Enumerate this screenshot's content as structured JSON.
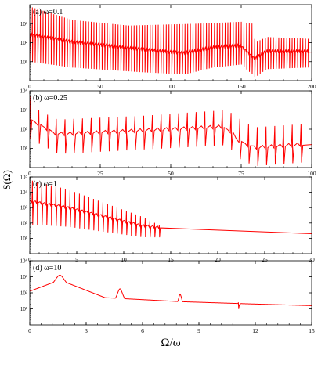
{
  "figure": {
    "ylabel": "S(Ω)",
    "xlabel": "Ω/ω",
    "line_color": "#ff0000"
  },
  "chart_data": [
    {
      "type": "line",
      "label": "(a) ω=0.1",
      "xlim": [
        0,
        200
      ],
      "ylim_log10": [
        0,
        4
      ],
      "y_scale": "log",
      "x_ticks": [
        0,
        50,
        100,
        150,
        200
      ],
      "y_ticks": [
        "10¹",
        "10²",
        "10³"
      ],
      "series": [
        {
          "peaks": {
            "x0": 0,
            "dx": 1.9,
            "count": 105
          },
          "baseline": [
            [
              0,
              2.4
            ],
            [
              30,
              2.0
            ],
            [
              80,
              1.6
            ],
            [
              110,
              1.4
            ],
            [
              130,
              1.7
            ],
            [
              150,
              1.8
            ],
            [
              160,
              1.1
            ],
            [
              168,
              1.5
            ],
            [
              200,
              1.5
            ]
          ],
          "peak_height": [
            [
              0,
              3.9
            ],
            [
              30,
              3.2
            ],
            [
              70,
              2.9
            ],
            [
              120,
              3.0
            ],
            [
              150,
              3.1
            ],
            [
              158,
              3.0
            ],
            [
              160,
              2.0
            ],
            [
              168,
              2.3
            ],
            [
              200,
              2.2
            ]
          ],
          "dip_depth": [
            [
              0,
              1.4
            ],
            [
              200,
              0.8
            ]
          ]
        }
      ]
    },
    {
      "type": "line",
      "label": "(b) ω=0.25",
      "xlim": [
        0,
        100
      ],
      "ylim_log10": [
        0,
        4
      ],
      "y_scale": "log",
      "x_ticks": [
        0,
        25,
        50,
        75,
        100
      ],
      "y_ticks": [
        "10¹",
        "10²",
        "10³",
        "10⁴"
      ],
      "series": [
        {
          "peaks": {
            "x0": 0.2,
            "dx": 3.1,
            "count": 32
          },
          "baseline": [
            [
              0,
              2.5
            ],
            [
              10,
              1.7
            ],
            [
              40,
              1.9
            ],
            [
              70,
              2.1
            ],
            [
              75,
              1.3
            ],
            [
              80,
              1.0
            ],
            [
              100,
              1.2
            ]
          ],
          "peak_height": [
            [
              0,
              3.8
            ],
            [
              3,
              3.0
            ],
            [
              10,
              2.5
            ],
            [
              40,
              2.7
            ],
            [
              70,
              3.0
            ],
            [
              75,
              2.5
            ],
            [
              80,
              2.1
            ],
            [
              100,
              2.3
            ]
          ],
          "dip_depth": [
            [
              0,
              1.0
            ],
            [
              100,
              0.9
            ]
          ]
        }
      ]
    },
    {
      "type": "line",
      "label": "(c) ω=1",
      "xlim": [
        0,
        30
      ],
      "ylim_log10": [
        0,
        5
      ],
      "y_scale": "log",
      "x_ticks": [
        0,
        5,
        10,
        15,
        20,
        25,
        30
      ],
      "y_ticks": [
        "10¹",
        "10²",
        "10³",
        "10⁴",
        "10⁵"
      ],
      "series": [
        {
          "peaks": {
            "x0": 0.3,
            "dx": 0.5,
            "count": 28
          },
          "baseline": [
            [
              0,
              3.4
            ],
            [
              4,
              3.0
            ],
            [
              8,
              2.4
            ],
            [
              12,
              1.8
            ],
            [
              15,
              1.6
            ],
            [
              20,
              1.5
            ],
            [
              30,
              1.3
            ]
          ],
          "peak_height": [
            [
              0,
              4.8
            ],
            [
              4,
              4.2
            ],
            [
              8,
              3.3
            ],
            [
              12,
              2.4
            ],
            [
              14,
              1.8
            ]
          ],
          "dip_depth": [
            [
              0,
              1.5
            ],
            [
              14,
              0.6
            ]
          ]
        }
      ]
    },
    {
      "type": "line",
      "label": "(d) ω=10",
      "xlim": [
        0,
        15
      ],
      "ylim_log10": [
        0,
        4
      ],
      "y_scale": "log",
      "x_ticks": [
        0,
        3,
        6,
        9,
        12,
        15
      ],
      "y_ticks": [
        "10¹",
        "10²",
        "10³",
        "10⁴"
      ],
      "series": [
        {
          "resonances": [
            {
              "x": 1.6,
              "log10_height": 3.1,
              "width": 0.22
            },
            {
              "x": 4.8,
              "log10_height": 2.25,
              "width": 0.12
            },
            {
              "x": 8.0,
              "log10_height": 1.9,
              "width": 0.08
            },
            {
              "x": 11.1,
              "log10_height": 1.4,
              "width": 0.03,
              "dip": 0.6
            }
          ],
          "background": [
            [
              0,
              2.1
            ],
            [
              1.6,
              2.8
            ],
            [
              4,
              1.7
            ],
            [
              8,
              1.45
            ],
            [
              12,
              1.3
            ],
            [
              15,
              1.2
            ]
          ]
        }
      ]
    }
  ]
}
